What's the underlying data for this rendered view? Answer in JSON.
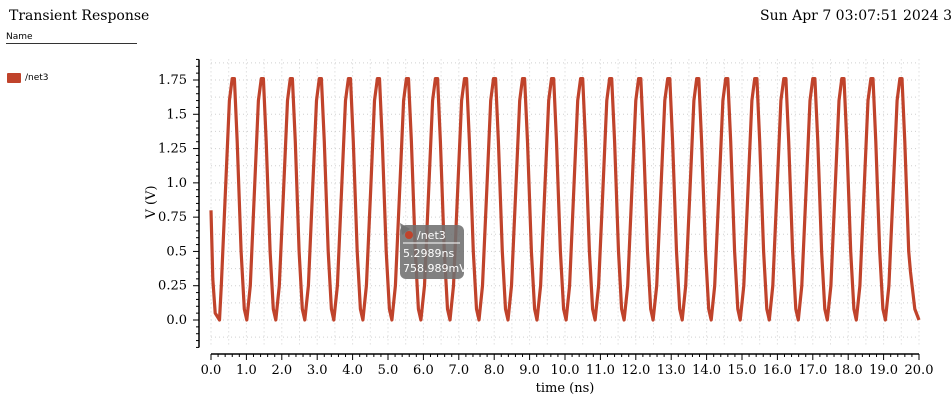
{
  "header": {
    "title": "Transient Response",
    "timestamp": "Sun Apr 7 03:07:51 2024   3"
  },
  "legend": {
    "header": "Name",
    "items": [
      {
        "label": "/net3",
        "color": "#c0432b"
      }
    ]
  },
  "chart_data": {
    "type": "line",
    "xlabel": "time (ns)",
    "ylabel": "V (V)",
    "xlim": [
      0,
      20
    ],
    "ylim": [
      -0.2,
      1.9
    ],
    "x_ticks": [
      "0.0",
      "1.0",
      "2.0",
      "3.0",
      "4.0",
      "5.0",
      "6.0",
      "7.0",
      "8.0",
      "9.0",
      "10.0",
      "11.0",
      "12.0",
      "13.0",
      "14.0",
      "15.0",
      "16.0",
      "17.0",
      "18.0",
      "19.0",
      "20.0"
    ],
    "y_ticks": [
      "1.75",
      "1.5",
      "1.25",
      "1.0",
      "0.75",
      "0.5",
      "0.25",
      "0.0"
    ],
    "grid": true,
    "series": [
      {
        "name": "/net3",
        "color": "#c0432b",
        "initial_value": 0.8,
        "low": 0.0,
        "high": 1.76,
        "peak_times": [
          0.6,
          1.42,
          2.24,
          3.06,
          3.88,
          4.7,
          5.52,
          6.34,
          7.16,
          7.98,
          8.8,
          9.62,
          10.44,
          11.26,
          12.08,
          12.9,
          13.72,
          14.54,
          15.36,
          16.18,
          17.0,
          17.82,
          18.64,
          19.46
        ],
        "end_value": 0.0
      }
    ],
    "marker": {
      "series": "/net3",
      "x_label": "5.2989ns",
      "y_label": "758.989mV",
      "x": 5.2989,
      "y": 0.758989
    }
  }
}
